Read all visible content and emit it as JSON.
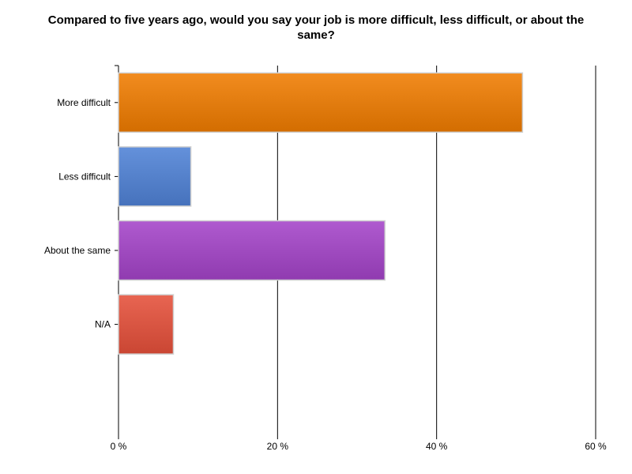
{
  "chart_data": {
    "type": "bar",
    "orientation": "horizontal",
    "title": "Compared to five years ago, would you say your job is more difficult, less difficult, or about the same?",
    "categories": [
      "More difficult",
      "Less difficult",
      "About the same",
      "N/A"
    ],
    "values": [
      50.8,
      9.1,
      33.5,
      6.9
    ],
    "colors": [
      "#f07c00",
      "#4f82d6",
      "#a443c8",
      "#e5503a"
    ],
    "xlim": [
      0,
      60
    ],
    "xticks": [
      0,
      20,
      40,
      60
    ],
    "xtick_labels": [
      "0 %",
      "20 %",
      "40 %",
      "60 %"
    ],
    "grid": true,
    "legend": "none"
  }
}
